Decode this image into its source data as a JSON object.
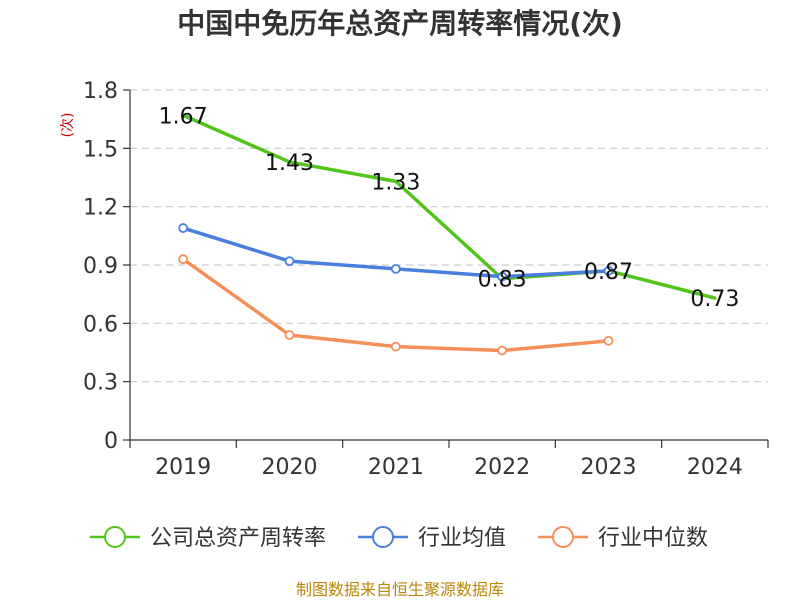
{
  "chart_data": {
    "type": "line",
    "title": "中国中免历年总资产周转率情况(次)",
    "ylabel": "(次)",
    "xlabel": "",
    "categories": [
      "2019",
      "2020",
      "2021",
      "2022",
      "2023",
      "2024"
    ],
    "y_ticks": [
      "0",
      "0.3",
      "0.6",
      "0.9",
      "1.2",
      "1.5",
      "1.8"
    ],
    "ylim": [
      0,
      1.8
    ],
    "grid": true,
    "legend_position": "bottom",
    "series": [
      {
        "name": "公司总资产周转率",
        "color": "#52c41a",
        "values": [
          1.67,
          1.43,
          1.33,
          0.83,
          0.87,
          0.73
        ],
        "labels": [
          "1.67",
          "1.43",
          "1.33",
          "0.83",
          "0.87",
          "0.73"
        ],
        "show_markers": false,
        "show_labels": true
      },
      {
        "name": "行业均值",
        "color": "#4a7fdb",
        "values": [
          1.09,
          0.92,
          0.88,
          0.84,
          0.87,
          null
        ],
        "show_markers": true,
        "show_labels": false
      },
      {
        "name": "行业中位数",
        "color": "#f5905a",
        "values": [
          0.93,
          0.54,
          0.48,
          0.46,
          0.51,
          null
        ],
        "show_markers": true,
        "show_labels": false
      }
    ]
  },
  "source_text": "制图数据来自恒生聚源数据库"
}
